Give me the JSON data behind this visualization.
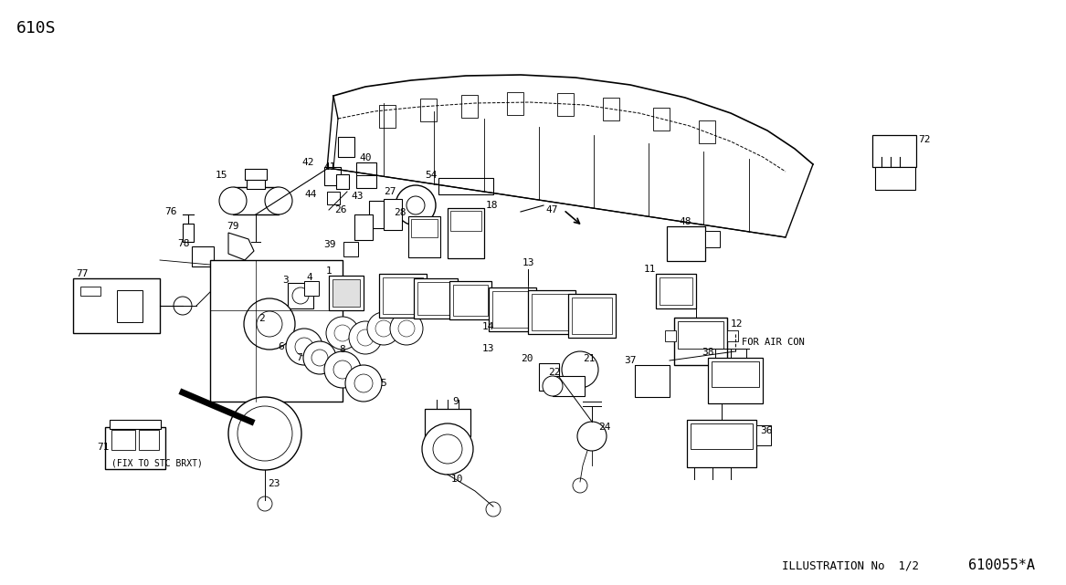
{
  "bg_color": "#ffffff",
  "text_color": "#000000",
  "page_code": "610S",
  "diagram_code": "610055*A",
  "illustration_text": "ILLUSTRATION No  1/2",
  "for_air_con": "FOR AIR CON",
  "fix_to_stc": "(FIX TO STC BRXT)",
  "figsize": [
    11.67,
    6.41
  ],
  "dpi": 100,
  "xlim": [
    0,
    1167
  ],
  "ylim": [
    0,
    641
  ]
}
